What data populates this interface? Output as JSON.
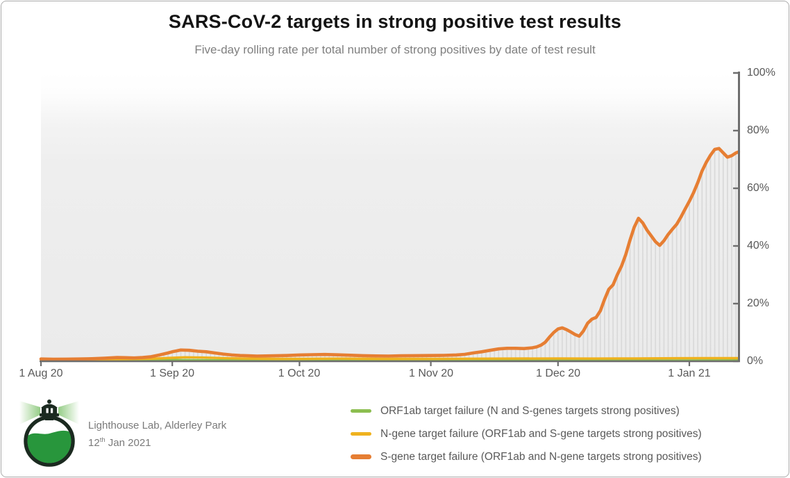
{
  "header": {
    "title": "SARS-CoV-2 targets in strong positive test results",
    "subtitle": "Five-day rolling rate per total number of strong positives by date of test result"
  },
  "footer": {
    "logo_name": "lighthouse-flask-logo",
    "org_line": "Lighthouse Lab, Alderley Park",
    "date_day": "12",
    "date_suffix": "th",
    "date_rest": " Jan 2021"
  },
  "colors": {
    "orf1ab": "#8cbe50",
    "ngene": "#efb21e",
    "sgene": "#e67e33",
    "stems": "#d9d9d9",
    "axis": "#6e6e6e",
    "tick_text": "#595959"
  },
  "chart_data": {
    "type": "line",
    "title": "SARS-CoV-2 targets in strong positive test results",
    "subtitle": "Five-day rolling rate per total number of strong positives by date of test result",
    "x_unit": "days since 1 Aug 2020",
    "grid": false,
    "legend_position": "bottom",
    "x_axis": {
      "tick_days": [
        0,
        31,
        61,
        92,
        122,
        153
      ],
      "tick_labels": [
        "1 Aug 20",
        "1 Sep 20",
        "1 Oct 20",
        "1 Nov 20",
        "1 Dec 20",
        "1 Jan 21"
      ],
      "range_days": [
        0,
        164.6
      ]
    },
    "y_axis": {
      "side": "right",
      "min": 0,
      "max": 100,
      "tick_values": [
        0,
        20,
        40,
        60,
        80,
        100
      ],
      "tick_labels": [
        "0%",
        "20%",
        "40%",
        "60%",
        "80%",
        "100%"
      ]
    },
    "stems": {
      "color": "#d9d9d9",
      "per_day": true,
      "follow_series": "sgene"
    },
    "series": [
      {
        "id": "orf1ab",
        "name": "ORF1ab target failure (N and S-genes targets strong positives)",
        "color": "#8cbe50",
        "stroke_width": 3,
        "points": [
          [
            0,
            0.3
          ],
          [
            15,
            0.3
          ],
          [
            28,
            0.4
          ],
          [
            31,
            0.5
          ],
          [
            35,
            0.45
          ],
          [
            45,
            0.35
          ],
          [
            61,
            0.3
          ],
          [
            80,
            0.3
          ],
          [
            92,
            0.3
          ],
          [
            105,
            0.35
          ],
          [
            122,
            0.35
          ],
          [
            135,
            0.3
          ],
          [
            150,
            0.3
          ],
          [
            164.6,
            0.35
          ]
        ]
      },
      {
        "id": "ngene",
        "name": "N-gene target failure (ORF1ab and S-gene targets strong positives)",
        "color": "#efb21e",
        "stroke_width": 3.4,
        "points": [
          [
            0,
            0.6
          ],
          [
            10,
            0.55
          ],
          [
            18,
            0.7
          ],
          [
            26,
            0.9
          ],
          [
            31,
            1.2
          ],
          [
            34,
            1.4
          ],
          [
            38,
            1.3
          ],
          [
            43,
            1.1
          ],
          [
            48,
            0.95
          ],
          [
            55,
            0.85
          ],
          [
            61,
            0.85
          ],
          [
            70,
            0.95
          ],
          [
            80,
            0.85
          ],
          [
            92,
            0.85
          ],
          [
            100,
            0.9
          ],
          [
            110,
            0.95
          ],
          [
            122,
            1.0
          ],
          [
            130,
            0.95
          ],
          [
            140,
            1.0
          ],
          [
            150,
            1.05
          ],
          [
            158,
            1.1
          ],
          [
            164.6,
            1.1
          ]
        ]
      },
      {
        "id": "sgene",
        "name": "S-gene target failure (ORF1ab and N-gene targets strong positives)",
        "color": "#e67e33",
        "stroke_width": 4.6,
        "points": [
          [
            0,
            0.8
          ],
          [
            3,
            0.7
          ],
          [
            6,
            0.75
          ],
          [
            9,
            0.8
          ],
          [
            12,
            0.9
          ],
          [
            15,
            1.05
          ],
          [
            18,
            1.3
          ],
          [
            20,
            1.25
          ],
          [
            22,
            1.15
          ],
          [
            24,
            1.3
          ],
          [
            26,
            1.6
          ],
          [
            28,
            2.2
          ],
          [
            30,
            2.9
          ],
          [
            31,
            3.3
          ],
          [
            33,
            3.9
          ],
          [
            35,
            3.8
          ],
          [
            37,
            3.5
          ],
          [
            39,
            3.3
          ],
          [
            41,
            2.9
          ],
          [
            43,
            2.5
          ],
          [
            45,
            2.2
          ],
          [
            47,
            2.0
          ],
          [
            49,
            1.9
          ],
          [
            51,
            1.8
          ],
          [
            53,
            1.85
          ],
          [
            55,
            1.9
          ],
          [
            58,
            2.0
          ],
          [
            61,
            2.2
          ],
          [
            64,
            2.3
          ],
          [
            67,
            2.35
          ],
          [
            70,
            2.25
          ],
          [
            73,
            2.1
          ],
          [
            76,
            1.95
          ],
          [
            79,
            1.85
          ],
          [
            82,
            1.8
          ],
          [
            85,
            1.9
          ],
          [
            88,
            1.95
          ],
          [
            92,
            2.0
          ],
          [
            95,
            2.05
          ],
          [
            98,
            2.2
          ],
          [
            100,
            2.4
          ],
          [
            102,
            2.9
          ],
          [
            104,
            3.3
          ],
          [
            106,
            3.8
          ],
          [
            108,
            4.3
          ],
          [
            110,
            4.5
          ],
          [
            112,
            4.5
          ],
          [
            114,
            4.4
          ],
          [
            116,
            4.7
          ],
          [
            117,
            5.0
          ],
          [
            118,
            5.6
          ],
          [
            119,
            6.6
          ],
          [
            120,
            8.4
          ],
          [
            121,
            10.0
          ],
          [
            122,
            11.2
          ],
          [
            123,
            11.6
          ],
          [
            124,
            11.0
          ],
          [
            125,
            10.2
          ],
          [
            126,
            9.3
          ],
          [
            127,
            8.7
          ],
          [
            128,
            10.5
          ],
          [
            129,
            13.2
          ],
          [
            130,
            14.6
          ],
          [
            131,
            15.2
          ],
          [
            132,
            17.5
          ],
          [
            133,
            21.5
          ],
          [
            134,
            25.0
          ],
          [
            135,
            26.5
          ],
          [
            136,
            30.0
          ],
          [
            137,
            33.0
          ],
          [
            138,
            37.0
          ],
          [
            139,
            42.0
          ],
          [
            140,
            46.5
          ],
          [
            141,
            49.6
          ],
          [
            142,
            48.0
          ],
          [
            143,
            45.5
          ],
          [
            144,
            43.5
          ],
          [
            145,
            41.5
          ],
          [
            146,
            40.2
          ],
          [
            147,
            41.8
          ],
          [
            148,
            44.0
          ],
          [
            149,
            45.8
          ],
          [
            150,
            47.5
          ],
          [
            151,
            50.0
          ],
          [
            152,
            52.8
          ],
          [
            153,
            55.5
          ],
          [
            154,
            58.5
          ],
          [
            155,
            62.0
          ],
          [
            156,
            66.0
          ],
          [
            157,
            69.0
          ],
          [
            158,
            71.5
          ],
          [
            159,
            73.5
          ],
          [
            160,
            73.8
          ],
          [
            161,
            72.3
          ],
          [
            162,
            70.8
          ],
          [
            163,
            71.3
          ],
          [
            164,
            72.3
          ],
          [
            164.6,
            72.6
          ]
        ]
      }
    ]
  }
}
